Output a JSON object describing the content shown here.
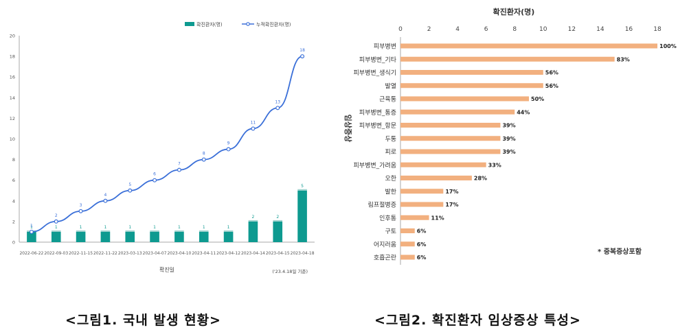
{
  "colors": {
    "bar_left": "#0e9a90",
    "line_left": "#3a6fd8",
    "bar_right": "#f2b07f",
    "grid": "#dcdcdc",
    "axis_text": "#555555"
  },
  "captions": {
    "left": "<그림1. 국내 발생 현황>",
    "right": "<그림2. 확진환자 임상증상 특성>"
  },
  "chart_data": [
    {
      "type": "bar+line",
      "title": "",
      "xlabel": "확진일",
      "ylabel": "",
      "note": "('23.4.18일 기준)",
      "ylim": [
        0,
        20
      ],
      "yticks": [
        0,
        2,
        4,
        6,
        8,
        10,
        12,
        14,
        16,
        18,
        20
      ],
      "grid": false,
      "legend_position": "top-right",
      "categories": [
        "2022-06-22",
        "2022-09-03",
        "2022-11-15",
        "2022-11-22",
        "2023-03-13",
        "2023-04-07",
        "2023-04-10",
        "2023-04-11",
        "2023-04-12",
        "2023-04-14",
        "2023-04-15",
        "2023-04-18"
      ],
      "series": [
        {
          "name": "확진환자(명)",
          "type": "bar",
          "values": [
            1,
            1,
            1,
            1,
            1,
            1,
            1,
            1,
            1,
            2,
            2,
            5
          ]
        },
        {
          "name": "누적확진환자(명)",
          "type": "line",
          "values": [
            1,
            2,
            3,
            4,
            5,
            6,
            7,
            8,
            9,
            11,
            13,
            18
          ]
        }
      ]
    },
    {
      "type": "bar",
      "orientation": "horizontal",
      "title": "확진환자(명)",
      "ylabel": "임상증상",
      "xlim": [
        0,
        18
      ],
      "xticks": [
        0,
        2,
        4,
        6,
        8,
        10,
        12,
        14,
        16,
        18
      ],
      "grid": false,
      "note": "* 중복증상포함",
      "categories": [
        "피부병변",
        "피부병변_기타",
        "피부병변_생식기",
        "발열",
        "근육통",
        "피부병변_통증",
        "피부병변_항문",
        "두통",
        "피로",
        "피부병변_가려움",
        "오한",
        "발한",
        "림프절병증",
        "인후통",
        "구토",
        "어지러움",
        "호흡곤란"
      ],
      "values": [
        18,
        15,
        10,
        10,
        9,
        8,
        7,
        7,
        7,
        6,
        5,
        3,
        3,
        2,
        1,
        1,
        1
      ],
      "labels": [
        "100%",
        "83%",
        "56%",
        "56%",
        "50%",
        "44%",
        "39%",
        "39%",
        "39%",
        "33%",
        "28%",
        "17%",
        "17%",
        "11%",
        "6%",
        "6%",
        "6%"
      ]
    }
  ]
}
